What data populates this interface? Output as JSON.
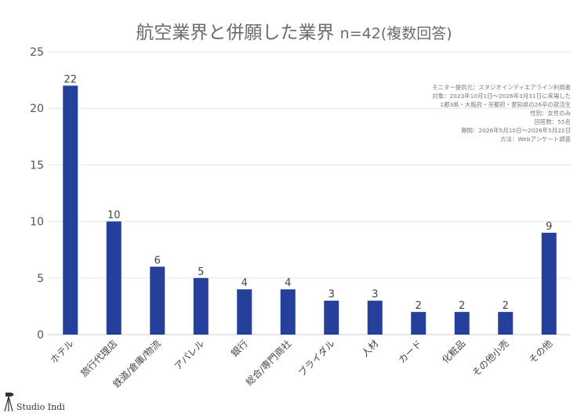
{
  "title": {
    "main": "航空業界と併願した業界",
    "sub": "n=42(複数回答)"
  },
  "notes": [
    "モニター提供元：スタジオインディエアライン利用者",
    "対象：2023年10月1日〜2026年3月31日に来場した",
    "1都3県・大阪府・京都府・愛知県の26卒の就活生",
    "性別：女性のみ",
    "回答数：55名",
    "期間：2026年5月10日〜2026年5月22日",
    "方法：Webアンケート調査"
  ],
  "logo": {
    "text": "Studio Indi",
    "icon": "camera-tripod-icon"
  },
  "chart_data": {
    "type": "bar",
    "categories": [
      "ホテル",
      "旅行代理店",
      "鉄道/倉庫/物流",
      "アパレル",
      "銀行",
      "総合/専門商社",
      "ブライダル",
      "人材",
      "カード",
      "化粧品",
      "その他小売",
      "その他"
    ],
    "values": [
      22,
      10,
      6,
      5,
      4,
      4,
      3,
      3,
      2,
      2,
      2,
      9
    ],
    "ylim": [
      0,
      25
    ],
    "yticks": [
      0,
      5,
      10,
      15,
      20,
      25
    ],
    "grid": true,
    "bar_color": "#25409a",
    "data_labels": true
  }
}
